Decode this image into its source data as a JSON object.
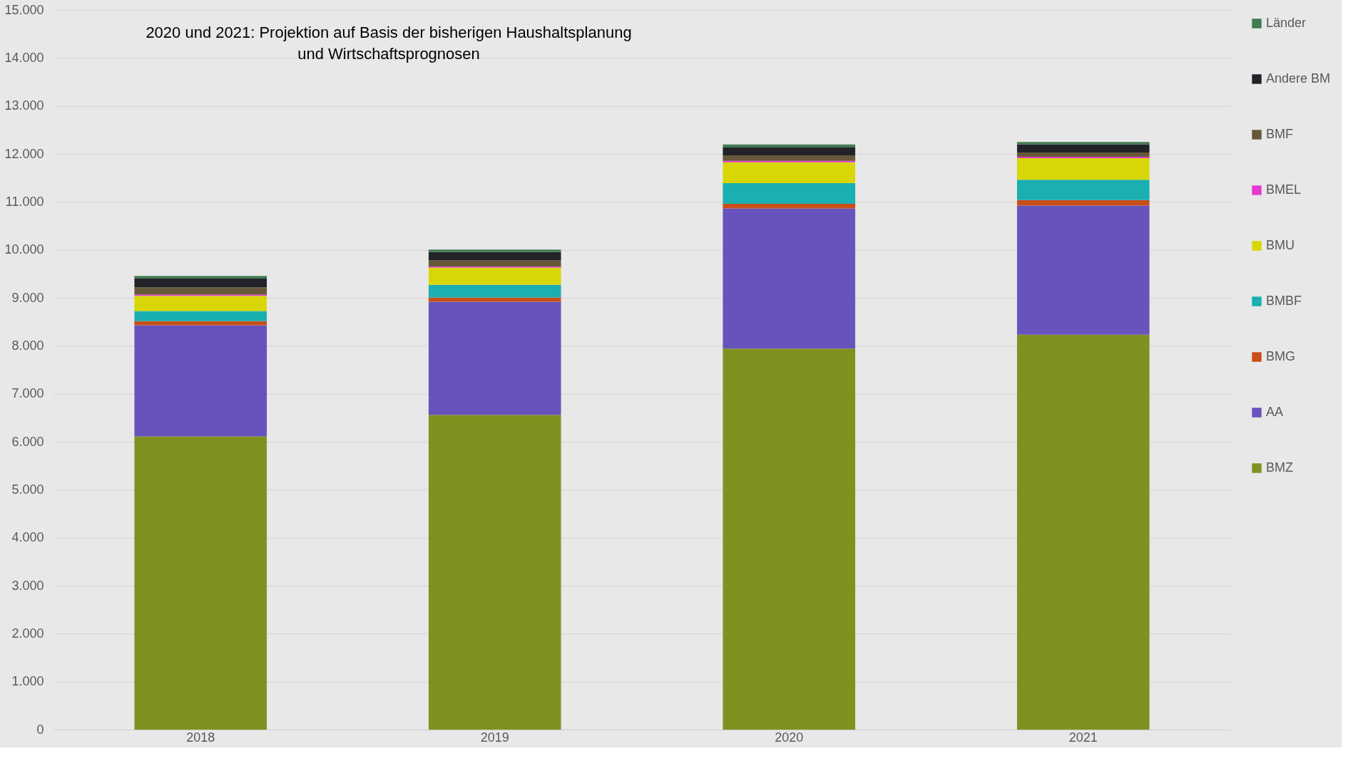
{
  "chart_data": {
    "type": "bar",
    "stacked": true,
    "categories": [
      "2018",
      "2019",
      "2020",
      "2021"
    ],
    "series": [
      {
        "name": "BMZ",
        "color": "#7f9220",
        "values": [
          6110,
          6560,
          7940,
          8230
        ]
      },
      {
        "name": "AA",
        "color": "#6853bd",
        "values": [
          2320,
          2360,
          2925,
          2695
        ]
      },
      {
        "name": "BMG",
        "color": "#c84e1a",
        "values": [
          84,
          89,
          95,
          115
        ]
      },
      {
        "name": "BMBF",
        "color": "#1aafb1",
        "values": [
          212,
          261,
          430,
          420
        ]
      },
      {
        "name": "BMU",
        "color": "#d8d705",
        "values": [
          316,
          360,
          435,
          450
        ]
      },
      {
        "name": "BMEL",
        "color": "#e43ad0",
        "values": [
          25,
          25,
          30,
          30
        ]
      },
      {
        "name": "BMF",
        "color": "#67583c",
        "values": [
          153,
          123,
          115,
          90
        ]
      },
      {
        "name": "Andere BM",
        "color": "#222228",
        "values": [
          182,
          178,
          165,
          170
        ]
      },
      {
        "name": "Länder",
        "color": "#437a52",
        "values": [
          54,
          49,
          60,
          50
        ]
      }
    ],
    "ylim": [
      0,
      15000
    ],
    "yticks": [
      0,
      {
        "value": 1000,
        "label": "1.000"
      },
      {
        "value": 2000,
        "label": "2.000"
      },
      {
        "value": 3000,
        "label": "3.000"
      },
      {
        "value": 4000,
        "label": "4.000"
      },
      {
        "value": 5000,
        "label": "5.000"
      },
      {
        "value": 6000,
        "label": "6.000"
      },
      {
        "value": 7000,
        "label": "7.000"
      },
      {
        "value": 8000,
        "label": "8.000"
      },
      {
        "value": 9000,
        "label": "9.000"
      },
      {
        "value": 10000,
        "label": "10.000"
      },
      {
        "value": 11000,
        "label": "11.000"
      },
      {
        "value": 12000,
        "label": "12.000"
      },
      {
        "value": 13000,
        "label": "13.000"
      },
      {
        "value": 14000,
        "label": "14.000"
      },
      {
        "value": 15000,
        "label": "15.000"
      }
    ],
    "grid": "y",
    "legend": "right",
    "annotations": [
      "2020 und 2021: Projektion auf Basis der bisherigen Haushaltsplanung\nund Wirtschaftsprognosen"
    ]
  }
}
